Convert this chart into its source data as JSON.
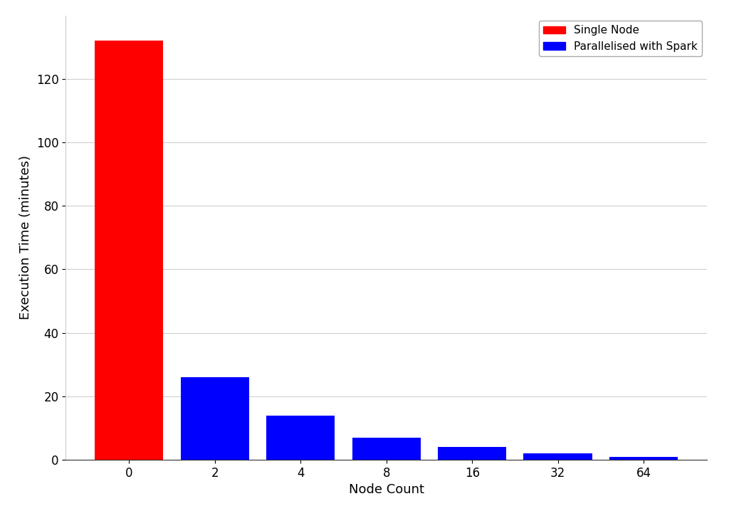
{
  "categories": [
    "0",
    "2",
    "4",
    "8",
    "16",
    "32",
    "64"
  ],
  "values": [
    132,
    26,
    14,
    7,
    4,
    2,
    1
  ],
  "colors": [
    "red",
    "blue",
    "blue",
    "blue",
    "blue",
    "blue",
    "blue"
  ],
  "xlabel": "Node Count",
  "ylabel": "Execution Time (minutes)",
  "ylim": [
    0,
    140
  ],
  "yticks": [
    0,
    20,
    40,
    60,
    80,
    100,
    120
  ],
  "legend_labels": [
    "Single Node",
    "Parallelised with Spark"
  ],
  "legend_colors": [
    "red",
    "blue"
  ],
  "bar_width": 0.8,
  "axis_fontsize": 13,
  "tick_fontsize": 12,
  "legend_fontsize": 11,
  "background_color": "#ffffff",
  "grid_color": "#d0d0d0"
}
